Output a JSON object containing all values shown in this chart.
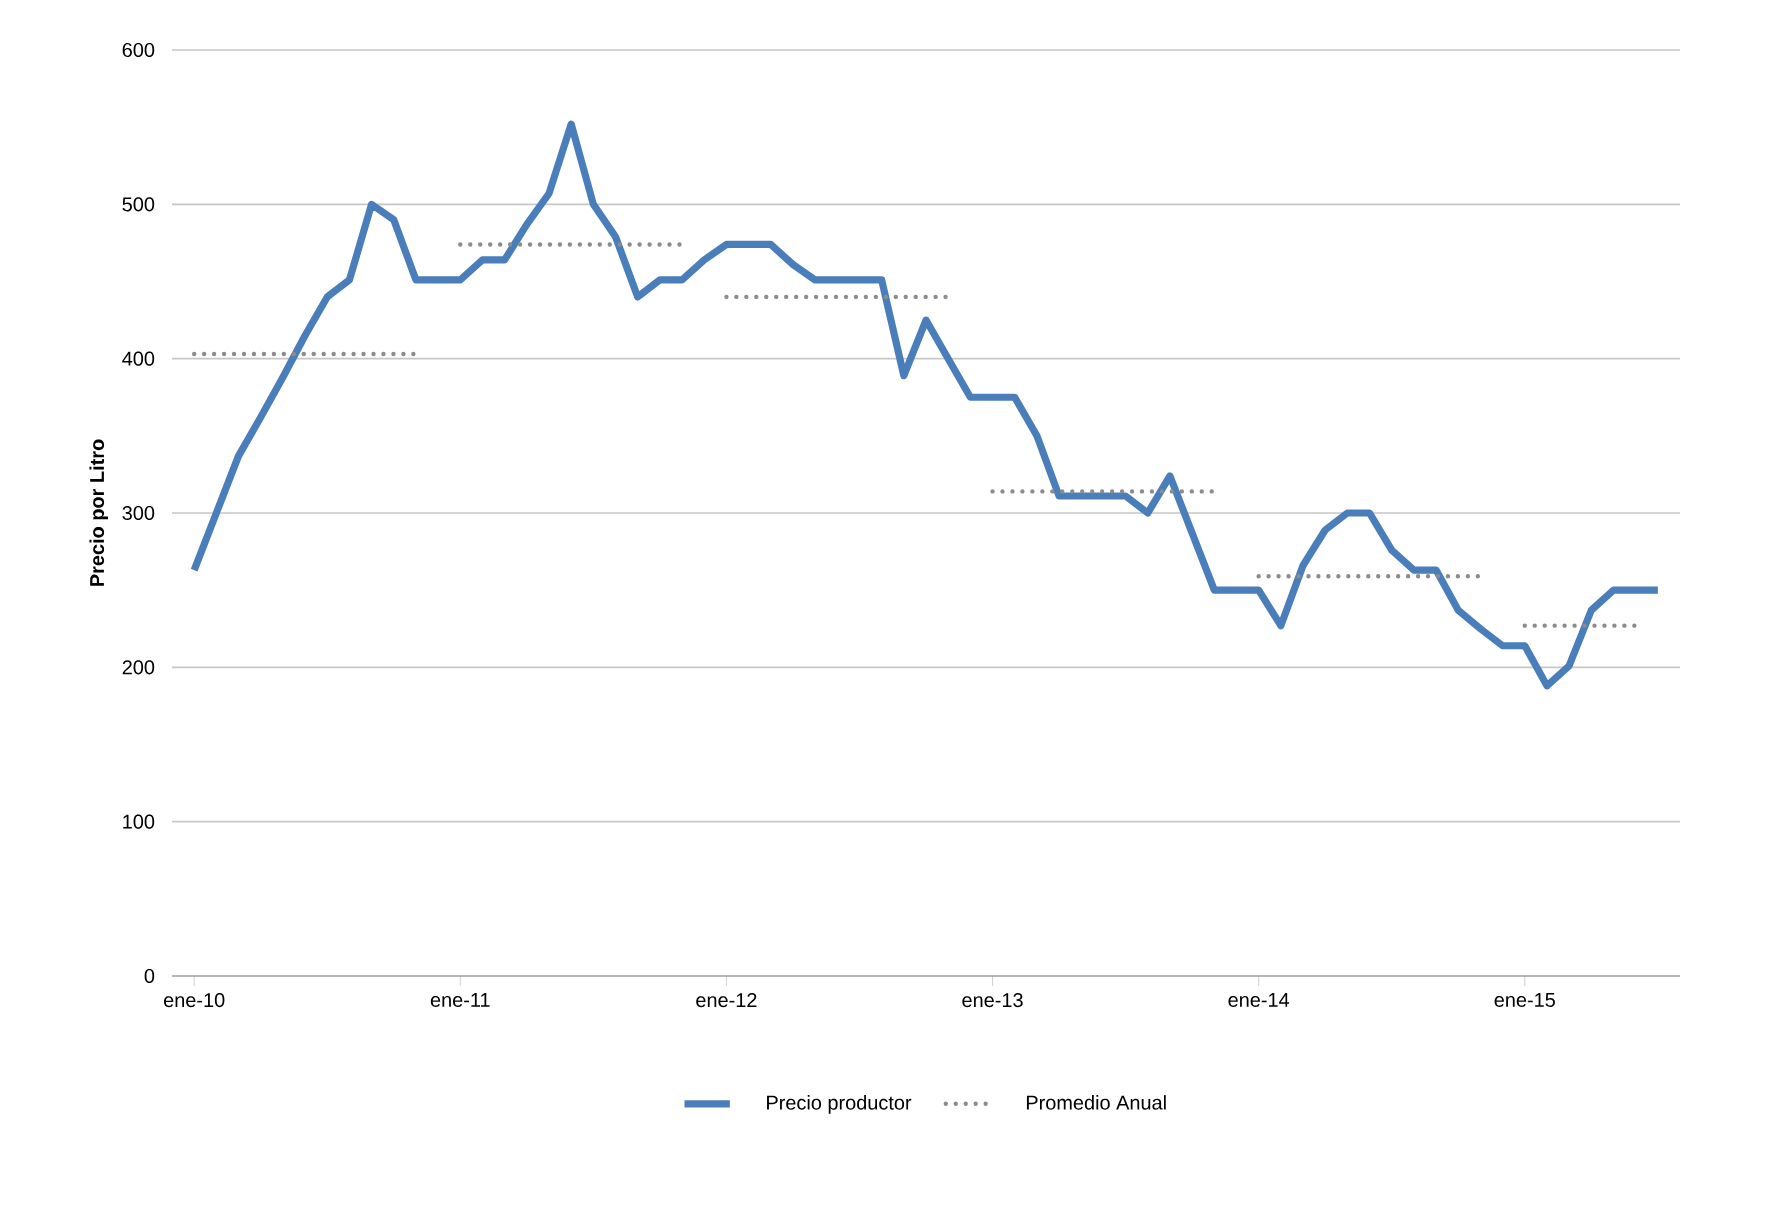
{
  "chart_data": {
    "type": "line",
    "ylabel": "Precio por Litro",
    "x": [
      "2010-01",
      "2010-02",
      "2010-03",
      "2010-04",
      "2010-05",
      "2010-06",
      "2010-07",
      "2010-08",
      "2010-09",
      "2010-10",
      "2010-11",
      "2010-12",
      "2011-01",
      "2011-02",
      "2011-03",
      "2011-04",
      "2011-05",
      "2011-06",
      "2011-07",
      "2011-08",
      "2011-09",
      "2011-10",
      "2011-11",
      "2011-12",
      "2012-01",
      "2012-02",
      "2012-03",
      "2012-04",
      "2012-05",
      "2012-06",
      "2012-07",
      "2012-08",
      "2012-09",
      "2012-10",
      "2012-11",
      "2012-12",
      "2013-01",
      "2013-02",
      "2013-03",
      "2013-04",
      "2013-05",
      "2013-06",
      "2013-07",
      "2013-08",
      "2013-09",
      "2013-10",
      "2013-11",
      "2013-12",
      "2014-01",
      "2014-02",
      "2014-03",
      "2014-04",
      "2014-05",
      "2014-06",
      "2014-07",
      "2014-08",
      "2014-09",
      "2014-10",
      "2014-11",
      "2014-12",
      "2015-01",
      "2015-02",
      "2015-03",
      "2015-04",
      "2015-05",
      "2015-06",
      "2015-07"
    ],
    "series": [
      {
        "name": "Precio productor",
        "color": "#4a7ebb",
        "line_style": "solid",
        "values": [
          263,
          300,
          337,
          362,
          388,
          415,
          440,
          451,
          500,
          490,
          451,
          451,
          451,
          464,
          464,
          487,
          507,
          552,
          500,
          479,
          440,
          451,
          451,
          464,
          474,
          474,
          474,
          461,
          451,
          451,
          451,
          451,
          389,
          425,
          400,
          375,
          375,
          375,
          350,
          311,
          311,
          311,
          311,
          300,
          324,
          287,
          250,
          250,
          250,
          227,
          266,
          289,
          300,
          300,
          276,
          263,
          263,
          237,
          225,
          214,
          214,
          188,
          201,
          237,
          250,
          250,
          250
        ]
      },
      {
        "name": "Promedio Anual",
        "color": "#8c8c8c",
        "line_style": "dotted",
        "values": [
          403,
          403,
          403,
          403,
          403,
          403,
          403,
          403,
          403,
          403,
          403,
          null,
          474,
          474,
          474,
          474,
          474,
          474,
          474,
          474,
          474,
          474,
          474,
          null,
          440,
          440,
          440,
          440,
          440,
          440,
          440,
          440,
          440,
          440,
          440,
          null,
          314,
          314,
          314,
          314,
          314,
          314,
          314,
          314,
          314,
          314,
          314,
          null,
          259,
          259,
          259,
          259,
          259,
          259,
          259,
          259,
          259,
          259,
          259,
          null,
          227,
          227,
          227,
          227,
          227,
          227,
          null
        ]
      }
    ],
    "xlim": [
      "2009-12",
      "2015-08"
    ],
    "xticks": [
      {
        "value": "2010-01",
        "label": "ene-10"
      },
      {
        "value": "2011-01",
        "label": "ene-11"
      },
      {
        "value": "2012-01",
        "label": "ene-12"
      },
      {
        "value": "2013-01",
        "label": "ene-13"
      },
      {
        "value": "2014-01",
        "label": "ene-14"
      },
      {
        "value": "2015-01",
        "label": "ene-15"
      }
    ],
    "ylim": [
      0,
      600
    ],
    "yticks": [
      0,
      100,
      200,
      300,
      400,
      500,
      600
    ],
    "grid": "y",
    "legend": "bottom"
  }
}
